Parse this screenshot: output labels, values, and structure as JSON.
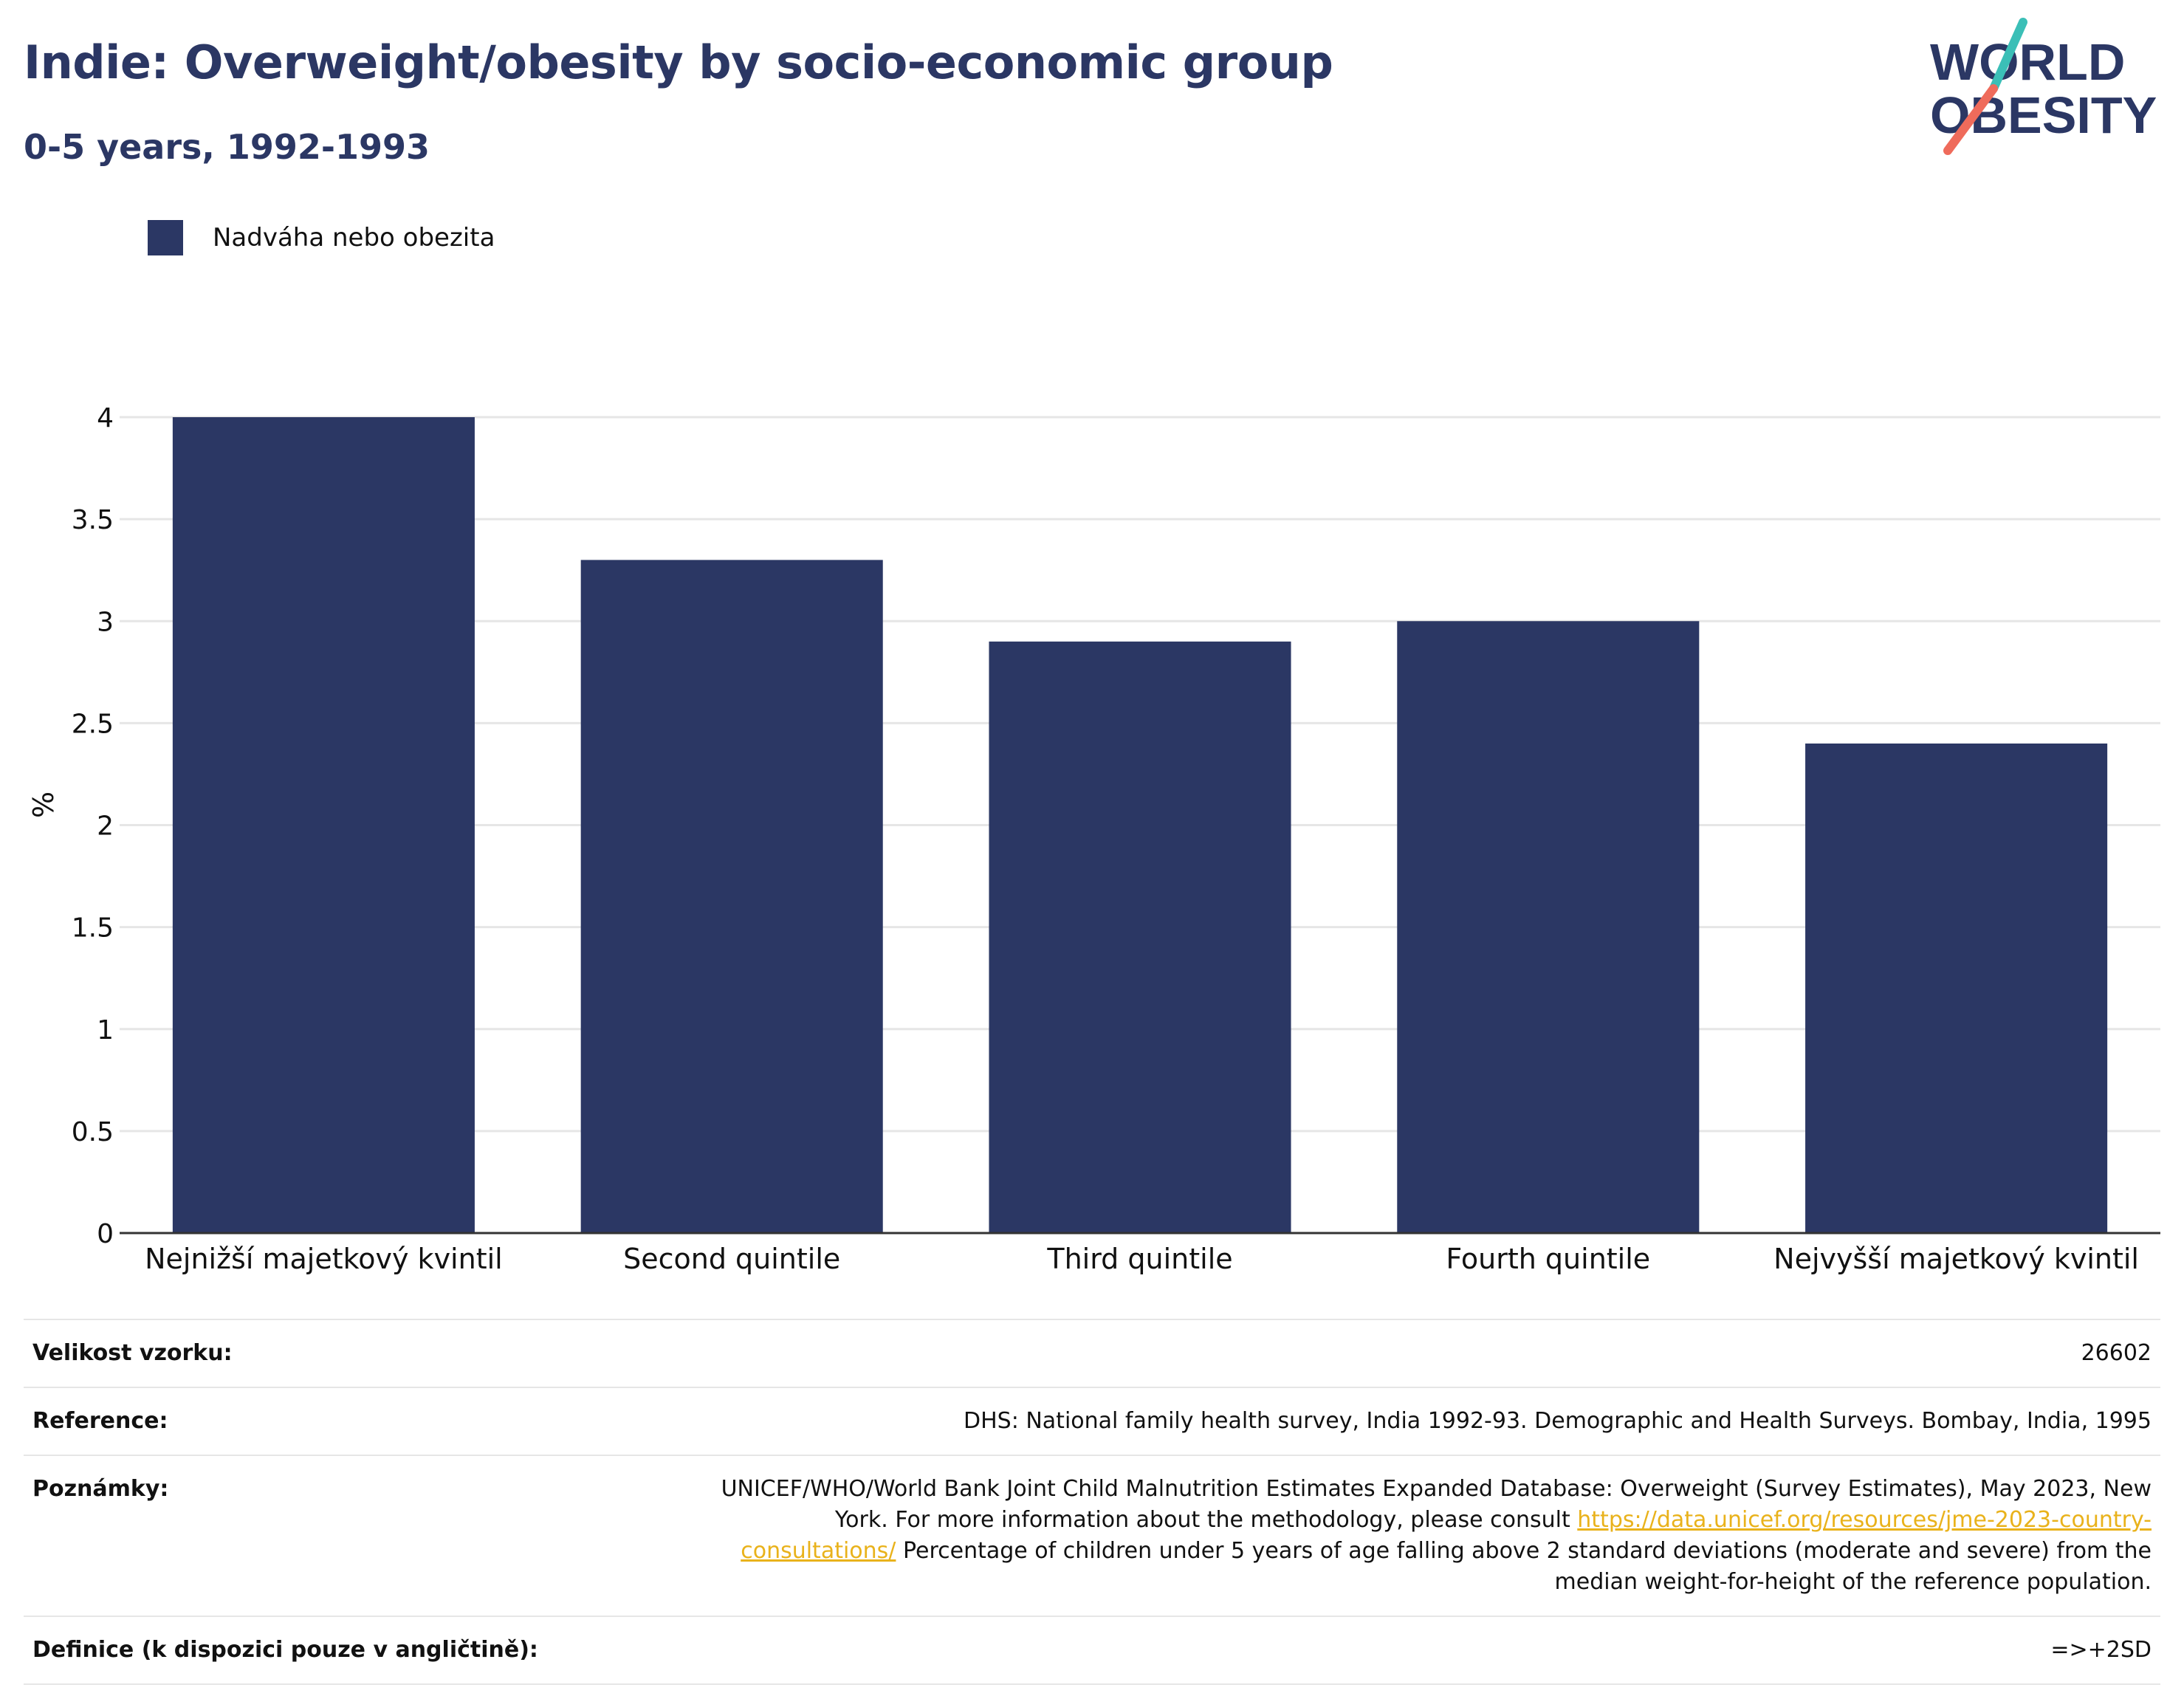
{
  "header": {
    "title": "Indie: Overweight/obesity by socio-economic group",
    "subtitle": "0-5 years, 1992-1993"
  },
  "logo": {
    "line1": "WORLD",
    "line2": "OBESITY",
    "accent_teal": "#3bbfb7",
    "accent_coral": "#ef6b5b",
    "brand_navy": "#2b3764"
  },
  "legend": {
    "label": "Nadváha nebo obezita",
    "color": "#2b3764"
  },
  "chart_data": {
    "type": "bar",
    "categories": [
      "Nejnižší majetkový kvintil",
      "Second quintile",
      "Third quintile",
      "Fourth quintile",
      "Nejvyšší majetkový kvintil"
    ],
    "series": [
      {
        "name": "Nadváha nebo obezita",
        "values": [
          4.0,
          3.3,
          2.9,
          3.0,
          2.4
        ],
        "color": "#2b3764"
      }
    ],
    "ylabel": "%",
    "ylim": [
      0,
      4
    ],
    "yticks": [
      "0",
      "0.5",
      "1",
      "1.5",
      "2",
      "2.5",
      "3",
      "3.5",
      "4"
    ],
    "grid": true,
    "legend_position": "top-left"
  },
  "info": {
    "sample_size": {
      "label": "Velikost vzorku:",
      "value": "26602"
    },
    "reference": {
      "label": "Reference:",
      "value": "DHS: National family health survey, India 1992-93. Demographic and Health Surveys. Bombay, India, 1995"
    },
    "notes": {
      "label": "Poznámky:",
      "text_before": "UNICEF/WHO/World Bank Joint Child Malnutrition Estimates Expanded Database: Overweight (Survey Estimates), May 2023, New York. For more information about the methodology, please consult",
      "link": "https://data.unicef.org/resources/jme-2023-country-consultations/",
      "text_after": "Percentage of children under 5 years of age falling above 2 standard deviations (moderate and severe) from the median weight-for-height of the reference population."
    },
    "definition": {
      "label": "Definice (k dispozici pouze v angličtině):",
      "value": "=>+2SD"
    }
  }
}
